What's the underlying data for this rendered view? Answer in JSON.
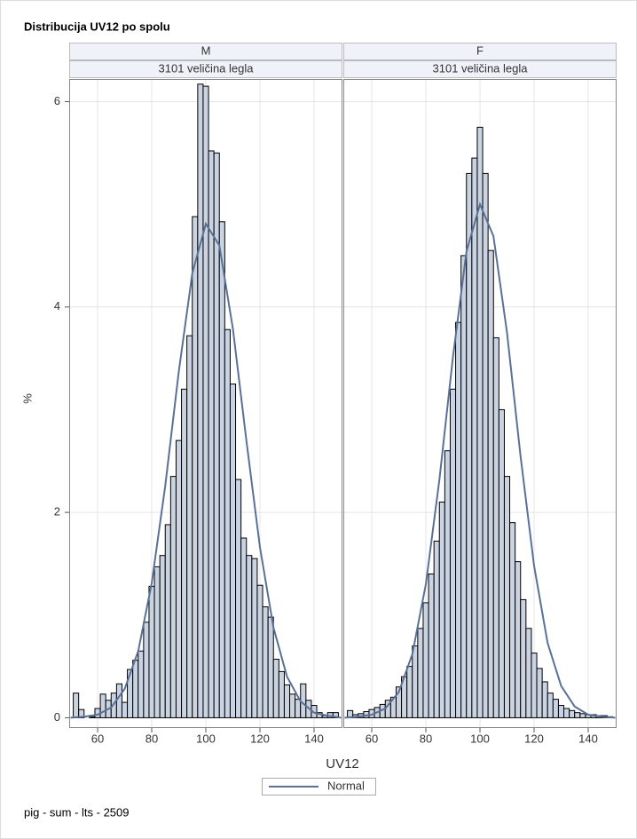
{
  "chart_data": {
    "type": "histogram",
    "title": "Distribucija UV12 po spolu",
    "xlabel": "UV12",
    "ylabel": "%",
    "footnote": "pig - sum - lts - 2509",
    "legend": "Normal",
    "bar_color": "#c9d3e1",
    "line_color": "#5a7196",
    "grid": true,
    "xlim": [
      49.5,
      150.5
    ],
    "ylim": [
      -0.1,
      6.22
    ],
    "xticks": [
      60,
      80,
      100,
      120,
      140
    ],
    "yticks": [
      0,
      2,
      4,
      6
    ],
    "bins": [
      51,
      53,
      55,
      57,
      59,
      61,
      63,
      65,
      67,
      69,
      71,
      73,
      75,
      77,
      79,
      81,
      83,
      85,
      87,
      89,
      91,
      93,
      95,
      97,
      99,
      101,
      103,
      105,
      107,
      109,
      111,
      113,
      115,
      117,
      119,
      121,
      123,
      125,
      127,
      129,
      131,
      133,
      135,
      137,
      139,
      141,
      143,
      145,
      147,
      149
    ],
    "normal_x": [
      50,
      55,
      60,
      65,
      70,
      75,
      80,
      85,
      90,
      95,
      100,
      105,
      110,
      115,
      120,
      125,
      130,
      135,
      140,
      145,
      150
    ],
    "panels": [
      {
        "label": "M",
        "sublabel": "3101 veličina legla",
        "values": [
          0.24,
          0.08,
          0.0,
          0.01,
          0.09,
          0.23,
          0.17,
          0.24,
          0.33,
          0.15,
          0.47,
          0.56,
          0.65,
          0.93,
          1.28,
          1.47,
          1.58,
          1.88,
          2.35,
          2.7,
          3.2,
          3.72,
          4.88,
          6.17,
          6.15,
          5.52,
          5.5,
          4.83,
          3.78,
          3.25,
          2.32,
          1.75,
          1.58,
          1.55,
          1.29,
          1.08,
          0.98,
          0.57,
          0.45,
          0.32,
          0.23,
          0.18,
          0.33,
          0.17,
          0.12,
          0.05,
          0.02,
          0.05,
          0.05
        ],
        "normal": [
          0.0,
          0.01,
          0.03,
          0.1,
          0.28,
          0.65,
          1.31,
          2.26,
          3.37,
          4.33,
          4.81,
          4.6,
          3.79,
          2.7,
          1.66,
          0.88,
          0.4,
          0.16,
          0.05,
          0.02,
          0.0
        ]
      },
      {
        "label": "F",
        "sublabel": "3101 veličina legla",
        "values": [
          0.07,
          0.03,
          0.04,
          0.06,
          0.08,
          0.1,
          0.13,
          0.17,
          0.2,
          0.3,
          0.4,
          0.5,
          0.7,
          0.87,
          1.12,
          1.4,
          1.72,
          2.1,
          2.6,
          3.2,
          3.85,
          4.5,
          5.3,
          5.45,
          5.75,
          5.3,
          4.55,
          3.7,
          3.0,
          2.35,
          1.9,
          1.52,
          1.15,
          0.87,
          0.63,
          0.48,
          0.35,
          0.24,
          0.18,
          0.12,
          0.09,
          0.07,
          0.05,
          0.04,
          0.03,
          0.03,
          0.02,
          0.02,
          0.01
        ],
        "normal": [
          0.0,
          0.01,
          0.03,
          0.09,
          0.25,
          0.62,
          1.3,
          2.32,
          3.51,
          4.54,
          5.0,
          4.69,
          3.75,
          2.55,
          1.48,
          0.73,
          0.31,
          0.11,
          0.03,
          0.01,
          0.0
        ]
      }
    ]
  }
}
